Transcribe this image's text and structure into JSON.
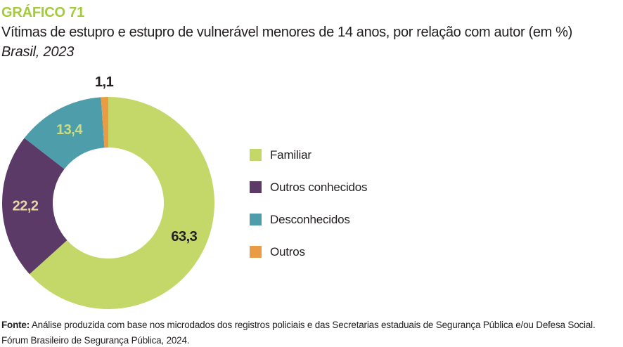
{
  "header": {
    "label": "GRÁFICO 71",
    "title": "Vítimas de estupro e estupro de vulnerável menores de 14 anos, por relação com autor (em %)",
    "subtitle": "Brasil, 2023"
  },
  "chart_data": {
    "type": "pie",
    "donut": true,
    "title": "Vítimas de estupro e estupro de vulnerável menores de 14 anos, por relação com autor (em %)",
    "subtitle": "Brasil, 2023",
    "start_angle_deg": 0,
    "direction": "clockwise",
    "unit": "%",
    "categories": [
      "Familiar",
      "Outros conhecidos",
      "Desconhecidos",
      "Outros"
    ],
    "values": [
      63.3,
      22.2,
      13.4,
      1.1
    ],
    "legend_position": "right",
    "slices": [
      {
        "label": "Familiar",
        "value": 63.3,
        "display": "63,3",
        "color": "#c4d86a",
        "label_color": "#231f20",
        "label_outside": false
      },
      {
        "label": "Outros conhecidos",
        "value": 22.2,
        "display": "22,2",
        "color": "#5c3a67",
        "label_color": "#e7d9a1",
        "label_outside": false
      },
      {
        "label": "Desconhecidos",
        "value": 13.4,
        "display": "13,4",
        "color": "#4e9dab",
        "label_color": "#cbdd80",
        "label_outside": false
      },
      {
        "label": "Outros",
        "value": 1.1,
        "display": "1,1",
        "color": "#e99c44",
        "label_color": "#231f20",
        "label_outside": true
      }
    ]
  },
  "footer": {
    "label": "Fonte:",
    "text1": " Análise produzida com base nos microdados dos registros policiais e das Secretarias estaduais de Segurança Pública e/ou Defesa Social.",
    "text2": "Fórum Brasileiro de Segurança Pública, 2024."
  },
  "colors": {
    "accent_green": "#a4cb3a",
    "text": "#231f20",
    "background": "#ffffff"
  }
}
